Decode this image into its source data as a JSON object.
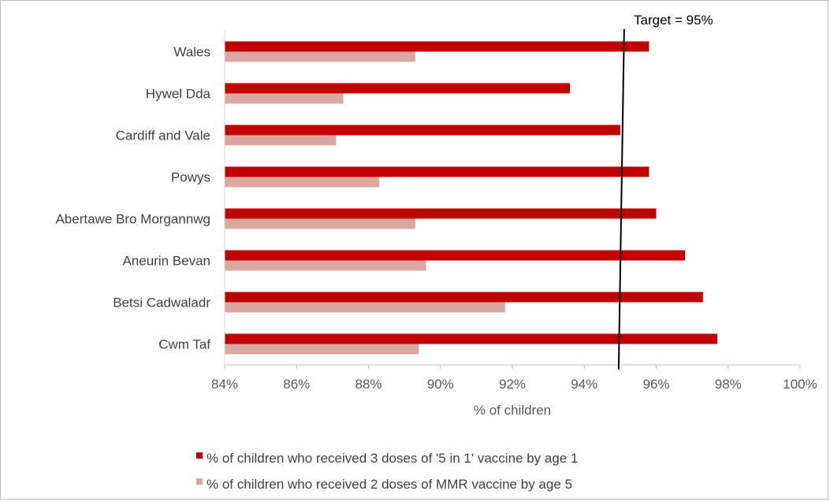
{
  "chart_data": {
    "type": "bar",
    "orientation": "horizontal",
    "categories": [
      "Wales",
      "Hywel Dda",
      "Cardiff and Vale",
      "Powys",
      "Abertawe Bro Morgannwg",
      "Aneurin Bevan",
      "Betsi Cadwaladr",
      "Cwm Taf"
    ],
    "series": [
      {
        "name": "% of children who received 3 doses of '5 in 1' vaccine by age 1",
        "color": "#c00000",
        "values": [
          95.8,
          93.6,
          95.0,
          95.8,
          96.0,
          96.8,
          97.3,
          97.7
        ]
      },
      {
        "name": "% of children who received 2 doses of MMR vaccine by age 5",
        "color": "#dba8a1",
        "values": [
          89.3,
          87.3,
          87.1,
          88.3,
          89.3,
          89.6,
          91.8,
          89.4
        ]
      }
    ],
    "xlim": [
      84,
      100
    ],
    "xticks": [
      "84%",
      "86%",
      "88%",
      "90%",
      "92%",
      "94%",
      "96%",
      "98%",
      "100%"
    ],
    "xlabel": "% of children",
    "ylabel": "",
    "grid": false,
    "legend_position": "bottom",
    "target": {
      "label": "Target = 95%",
      "value": 95
    }
  }
}
